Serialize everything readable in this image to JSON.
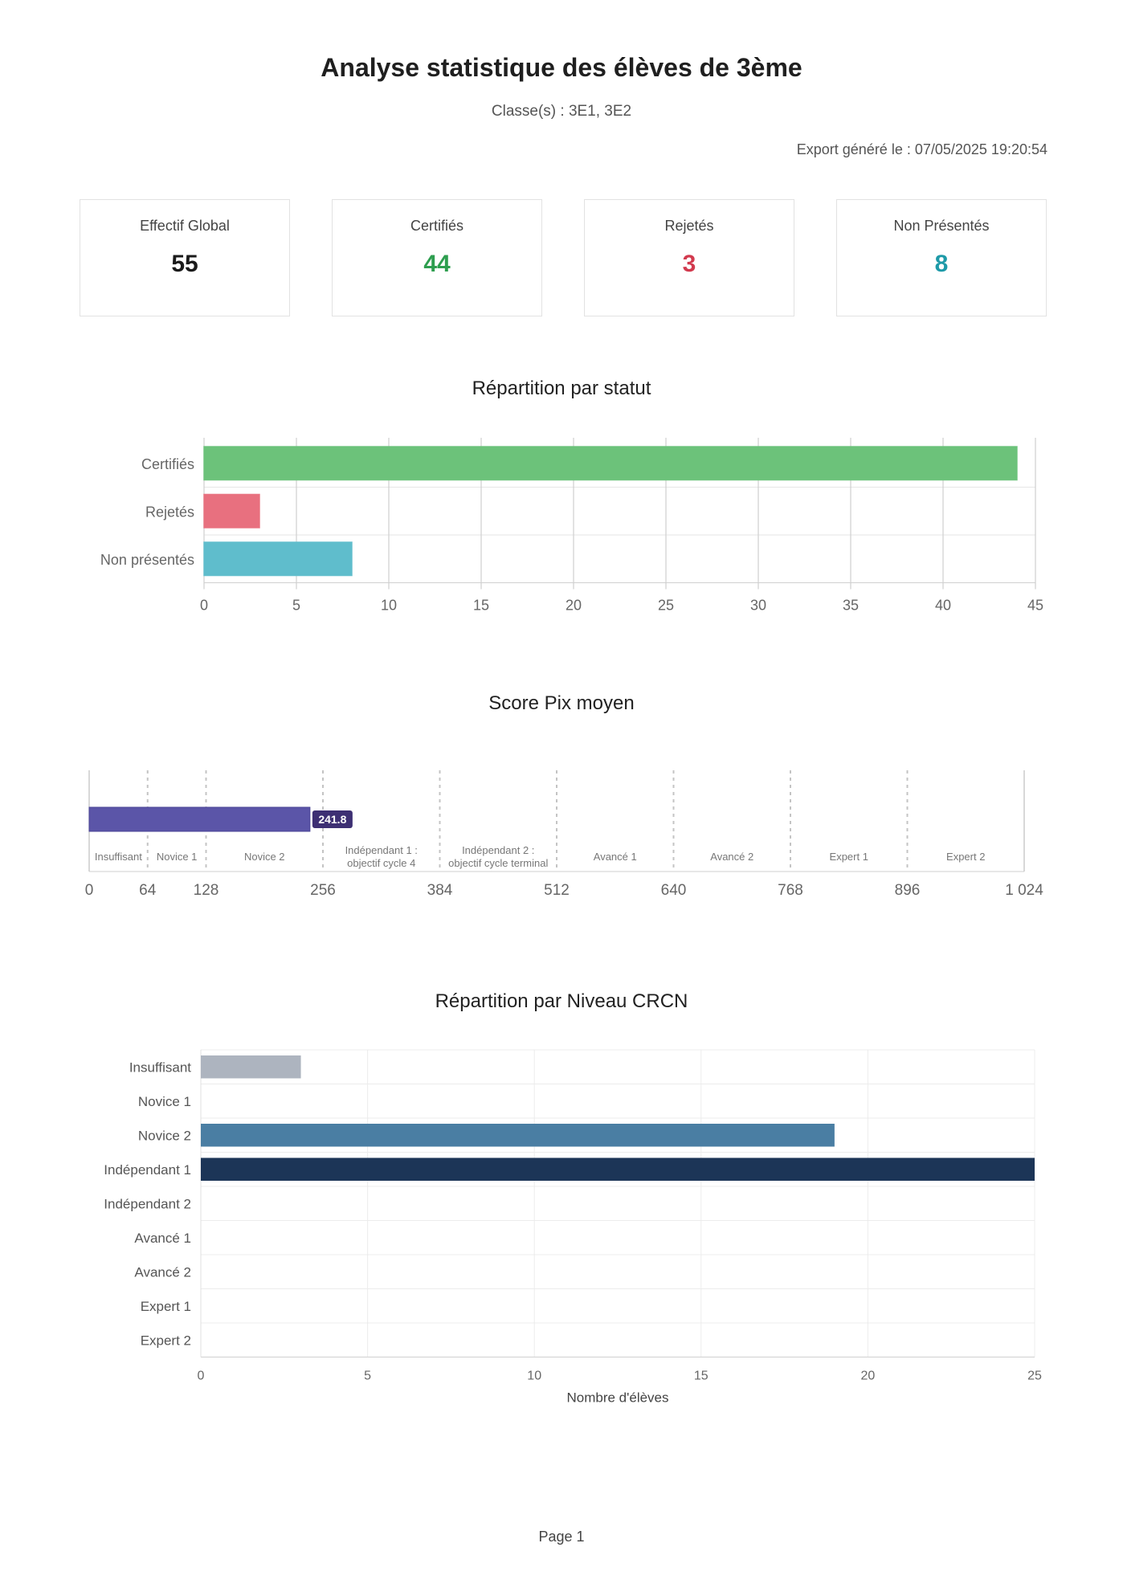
{
  "header": {
    "title": "Analyse statistique des élèves de 3ème",
    "subtitle": "Classe(s) : 3E1, 3E2",
    "export_info": "Export généré le : 07/05/2025 19:20:54"
  },
  "cards": [
    {
      "label": "Effectif Global",
      "value": "55",
      "color": "#1a1a1a"
    },
    {
      "label": "Certifiés",
      "value": "44",
      "color": "#2e9e4f"
    },
    {
      "label": "Rejetés",
      "value": "3",
      "color": "#d23a4e"
    },
    {
      "label": "Non Présentés",
      "value": "8",
      "color": "#1e9aa8"
    }
  ],
  "footer": {
    "page_label": "Page 1"
  },
  "chart_data": [
    {
      "type": "bar",
      "orientation": "horizontal",
      "title": "Répartition par statut",
      "categories": [
        "Certifiés",
        "Rejetés",
        "Non présentés"
      ],
      "values": [
        44,
        3,
        8
      ],
      "colors": [
        "#6cc27a",
        "#e8707f",
        "#5fbdcc"
      ],
      "xlim": [
        0,
        45
      ],
      "xticks": [
        0,
        5,
        10,
        15,
        20,
        25,
        30,
        35,
        40,
        45
      ],
      "grid": true,
      "xlabel": "",
      "ylabel": ""
    },
    {
      "type": "bar",
      "orientation": "horizontal",
      "title": "Score Pix moyen",
      "value": 241.8,
      "value_label": "241.8",
      "bar_color": "#5b55a8",
      "label_color": "#3d2f73",
      "xlim": [
        0,
        1024
      ],
      "xticks": [
        0,
        64,
        128,
        256,
        384,
        512,
        640,
        768,
        896,
        1024
      ],
      "xtick_labels": [
        "0",
        "64",
        "128",
        "256",
        "384",
        "512",
        "640",
        "768",
        "896",
        "1 024"
      ],
      "zone_bounds": [
        0,
        64,
        128,
        256,
        384,
        512,
        640,
        768,
        896,
        1024
      ],
      "zones": [
        {
          "lines": [
            "Insuffisant"
          ]
        },
        {
          "lines": [
            "Novice 1"
          ]
        },
        {
          "lines": [
            "Novice 2"
          ]
        },
        {
          "lines": [
            "Indépendant 1 :",
            "objectif cycle 4"
          ]
        },
        {
          "lines": [
            "Indépendant 2 :",
            "objectif cycle terminal"
          ]
        },
        {
          "lines": [
            "Avancé 1"
          ]
        },
        {
          "lines": [
            "Avancé 2"
          ]
        },
        {
          "lines": [
            "Expert 1"
          ]
        },
        {
          "lines": [
            "Expert 2"
          ]
        }
      ]
    },
    {
      "type": "bar",
      "orientation": "horizontal",
      "title": "Répartition par Niveau CRCN",
      "categories": [
        "Insuffisant",
        "Novice 1",
        "Novice 2",
        "Indépendant 1",
        "Indépendant 2",
        "Avancé 1",
        "Avancé 2",
        "Expert 1",
        "Expert 2"
      ],
      "values": [
        3,
        0,
        19,
        25,
        0,
        0,
        0,
        0,
        0
      ],
      "colors": [
        "#adb4bf",
        "#adb4bf",
        "#4a7ea3",
        "#1c3557",
        "#1c3557",
        "#1c3557",
        "#1c3557",
        "#1c3557",
        "#1c3557"
      ],
      "xlim": [
        0,
        25
      ],
      "xticks": [
        0,
        5,
        10,
        15,
        20,
        25
      ],
      "xlabel": "Nombre d'élèves",
      "ylabel": "",
      "grid": true
    }
  ]
}
